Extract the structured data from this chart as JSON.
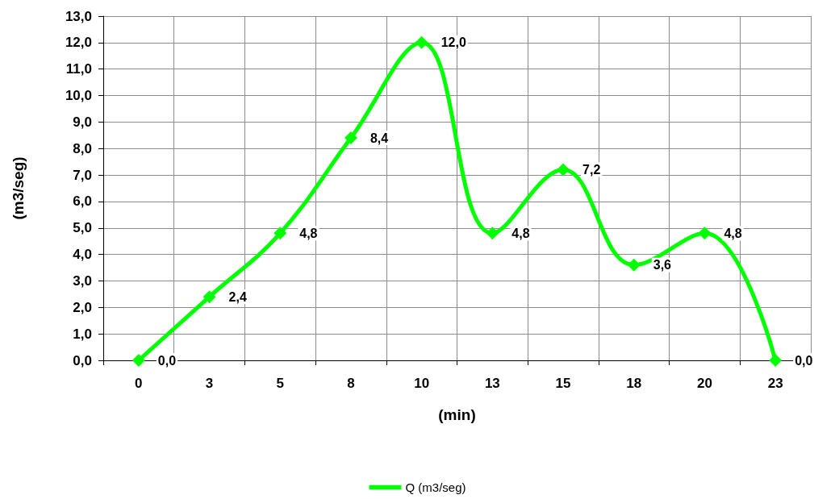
{
  "chart_data": {
    "type": "line",
    "xlabel": "(min)",
    "ylabel": "(m3/seg)",
    "categories": [
      "0",
      "3",
      "5",
      "8",
      "10",
      "13",
      "15",
      "18",
      "20",
      "23"
    ],
    "series": [
      {
        "name": "Q (m3/seg)",
        "color": "#00ff00",
        "values": [
          0,
          2.4,
          4.8,
          8.4,
          12,
          4.8,
          7.2,
          3.6,
          4.8,
          0
        ],
        "value_labels": [
          "0,0",
          "2,4",
          "4,8",
          "8,4",
          "12,0",
          "4,8",
          "7,2",
          "3,6",
          "4,8",
          "0,0"
        ]
      }
    ],
    "ylim": [
      0,
      13
    ],
    "yticks": [
      {
        "value": 0,
        "label": "0,0"
      },
      {
        "value": 1,
        "label": "1,0"
      },
      {
        "value": 2,
        "label": "2,0"
      },
      {
        "value": 3,
        "label": "3,0"
      },
      {
        "value": 4,
        "label": "4,0"
      },
      {
        "value": 5,
        "label": "5,0"
      },
      {
        "value": 6,
        "label": "6,0"
      },
      {
        "value": 7,
        "label": "7,0"
      },
      {
        "value": 8,
        "label": "8,0"
      },
      {
        "value": 9,
        "label": "9,0"
      },
      {
        "value": 10,
        "label": "10,0"
      },
      {
        "value": 11,
        "label": "11,0"
      },
      {
        "value": 12,
        "label": "12,0"
      },
      {
        "value": 13,
        "label": "13,0"
      }
    ],
    "grid": true,
    "legend": "bottom",
    "marker": "diamond",
    "line_style": "solid"
  }
}
